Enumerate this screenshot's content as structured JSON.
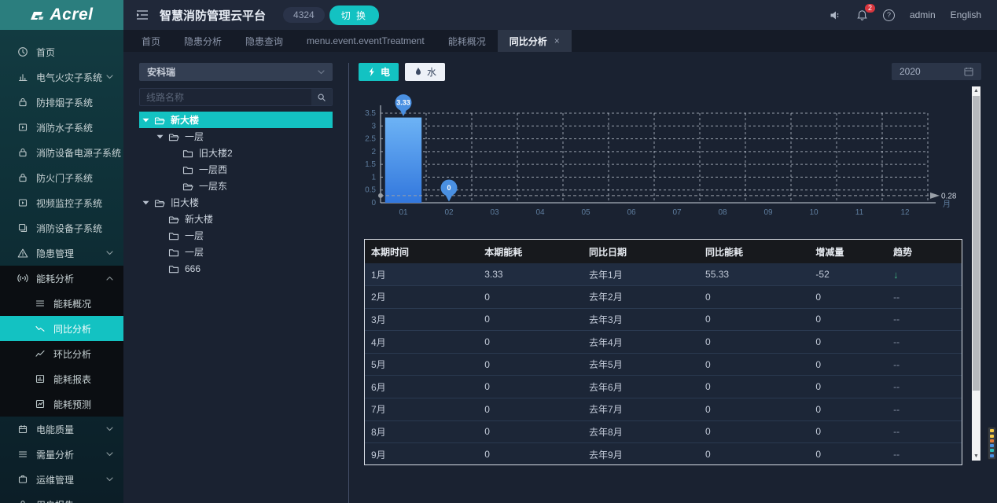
{
  "brand": {
    "logo_text": "Acrel"
  },
  "header": {
    "title": "智慧消防管理云平台",
    "badge": "4324",
    "switch_label": "切 换",
    "notification_count": "2",
    "user": "admin",
    "language": "English"
  },
  "tabs": [
    {
      "label": "首页",
      "active": false
    },
    {
      "label": "隐患分析",
      "active": false
    },
    {
      "label": "隐患查询",
      "active": false
    },
    {
      "label": "menu.event.eventTreatment",
      "active": false
    },
    {
      "label": "能耗概况",
      "active": false
    },
    {
      "label": "同比分析",
      "active": true,
      "closable": true
    }
  ],
  "sidebar": {
    "items": [
      {
        "label": "首页",
        "icon": "home-icon"
      },
      {
        "label": "电气火灾子系统",
        "icon": "bar-chart-icon",
        "chevron": "down"
      },
      {
        "label": "防排烟子系统",
        "icon": "lock-icon"
      },
      {
        "label": "消防水子系统",
        "icon": "video-icon"
      },
      {
        "label": "消防设备电源子系统",
        "icon": "lock-icon"
      },
      {
        "label": "防火门子系统",
        "icon": "lock-icon"
      },
      {
        "label": "视频监控子系统",
        "icon": "video-icon"
      },
      {
        "label": "消防设备子系统",
        "icon": "copy-icon"
      },
      {
        "label": "隐患管理",
        "icon": "warning-icon",
        "chevron": "down"
      },
      {
        "label": "能耗分析",
        "icon": "wave-icon",
        "chevron": "up",
        "expanded": true,
        "children": [
          {
            "label": "能耗概况",
            "icon": "list-icon"
          },
          {
            "label": "同比分析",
            "icon": "trend-down-icon",
            "active": true
          },
          {
            "label": "环比分析",
            "icon": "trend-up-icon"
          },
          {
            "label": "能耗报表",
            "icon": "report-icon"
          },
          {
            "label": "能耗预测",
            "icon": "forecast-icon"
          }
        ]
      },
      {
        "label": "电能质量",
        "icon": "calendar-icon",
        "chevron": "down"
      },
      {
        "label": "需量分析",
        "icon": "list-icon",
        "chevron": "down"
      },
      {
        "label": "运维管理",
        "icon": "ops-icon",
        "chevron": "down"
      },
      {
        "label": "用户报告",
        "icon": "lock-icon"
      }
    ]
  },
  "panel": {
    "dropdown_value": "安科瑞",
    "search_placeholder": "线路名称",
    "tree": [
      {
        "label": "新大楼",
        "level": 0,
        "caret": true,
        "folder": "open",
        "selected": true
      },
      {
        "label": "一层",
        "level": 1,
        "caret": true,
        "folder": "open"
      },
      {
        "label": "旧大楼2",
        "level": 2,
        "folder": "closed"
      },
      {
        "label": "一层西",
        "level": 2,
        "folder": "closed"
      },
      {
        "label": "一层东",
        "level": 2,
        "folder": "open"
      },
      {
        "label": "旧大楼",
        "level": 0,
        "caret": true,
        "folder": "open"
      },
      {
        "label": "新大楼",
        "level": 1,
        "folder": "open"
      },
      {
        "label": "一层",
        "level": 1,
        "folder": "closed"
      },
      {
        "label": "一层",
        "level": 1,
        "folder": "closed"
      },
      {
        "label": "666",
        "level": 1,
        "folder": "closed"
      }
    ]
  },
  "toolbar": {
    "electric_label": "电",
    "water_label": "水",
    "year_value": "2020"
  },
  "chart_data": {
    "type": "bar",
    "title": "",
    "categories": [
      "01",
      "02",
      "03",
      "04",
      "05",
      "06",
      "07",
      "08",
      "09",
      "10",
      "11",
      "12"
    ],
    "values": [
      3.33,
      0,
      0,
      0,
      0,
      0,
      0,
      0,
      0,
      0,
      0,
      0
    ],
    "yticks": [
      0,
      0.5,
      1,
      1.5,
      2,
      2.5,
      3,
      3.5
    ],
    "ylim": [
      0,
      3.5
    ],
    "xlabel": "月",
    "ylabel": "",
    "grid": "dashed",
    "legend": "none",
    "average_marker": 0.28,
    "data_labels": [
      {
        "x": "01",
        "text": "3.33"
      },
      {
        "x": "02",
        "text": "0"
      }
    ],
    "bar_color_top": "#6db3f5",
    "bar_color_bottom": "#3277dd",
    "pin_color": "#4a90e2"
  },
  "table": {
    "columns": [
      "本期时间",
      "本期能耗",
      "同比日期",
      "同比能耗",
      "增减量",
      "趋势"
    ],
    "rows": [
      [
        "1月",
        "3.33",
        "去年1月",
        "55.33",
        "-52",
        "↓"
      ],
      [
        "2月",
        "0",
        "去年2月",
        "0",
        "0",
        "--"
      ],
      [
        "3月",
        "0",
        "去年3月",
        "0",
        "0",
        "--"
      ],
      [
        "4月",
        "0",
        "去年4月",
        "0",
        "0",
        "--"
      ],
      [
        "5月",
        "0",
        "去年5月",
        "0",
        "0",
        "--"
      ],
      [
        "6月",
        "0",
        "去年6月",
        "0",
        "0",
        "--"
      ],
      [
        "7月",
        "0",
        "去年7月",
        "0",
        "0",
        "--"
      ],
      [
        "8月",
        "0",
        "去年8月",
        "0",
        "0",
        "--"
      ],
      [
        "9月",
        "0",
        "去年9月",
        "0",
        "0",
        "--"
      ]
    ]
  },
  "colors": {
    "accent": "#13c2c2",
    "trend_down_green": "#3faf7f",
    "notification_red": "#d9363e",
    "widget_dots": [
      "#f2c744",
      "#f2c744",
      "#e07b39",
      "#4a90e2",
      "#2bbcbc",
      "#4a90e2"
    ]
  }
}
